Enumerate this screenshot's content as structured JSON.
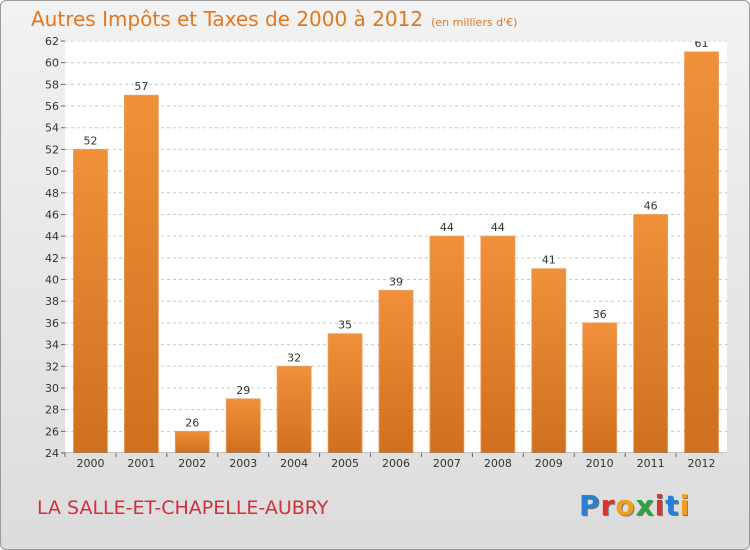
{
  "title": "Autres Impôts et Taxes de 2000 à 2012",
  "unit": "(en milliers d'€)",
  "commune": "LA SALLE-ET-CHAPELLE-AUBRY",
  "logo": {
    "letters": [
      "P",
      "r",
      "o",
      "x",
      "i",
      "t",
      "i"
    ],
    "colors": [
      "#2a7fd4",
      "#e0302a",
      "#f0a020",
      "#30a040",
      "#e0302a",
      "#2a7fd4",
      "#f0a020"
    ]
  },
  "chart_data": {
    "type": "bar",
    "categories": [
      "2000",
      "2001",
      "2002",
      "2003",
      "2004",
      "2005",
      "2006",
      "2007",
      "2008",
      "2009",
      "2010",
      "2011",
      "2012"
    ],
    "values": [
      52,
      57,
      26,
      29,
      32,
      35,
      39,
      44,
      44,
      41,
      36,
      46,
      61
    ],
    "labels": [
      "52",
      "57",
      "26",
      "29",
      "32",
      "35",
      "39",
      "44",
      "44",
      "41",
      "36",
      "46",
      "61"
    ],
    "ylim": [
      24,
      62
    ],
    "yticks": [
      "24",
      "26",
      "28",
      "30",
      "32",
      "34",
      "36",
      "38",
      "40",
      "42",
      "44",
      "46",
      "48",
      "50",
      "52",
      "54",
      "56",
      "58",
      "60",
      "62"
    ],
    "grid": true,
    "bar_color": "#f0903a",
    "bar_color_dark": "#d0701e"
  }
}
